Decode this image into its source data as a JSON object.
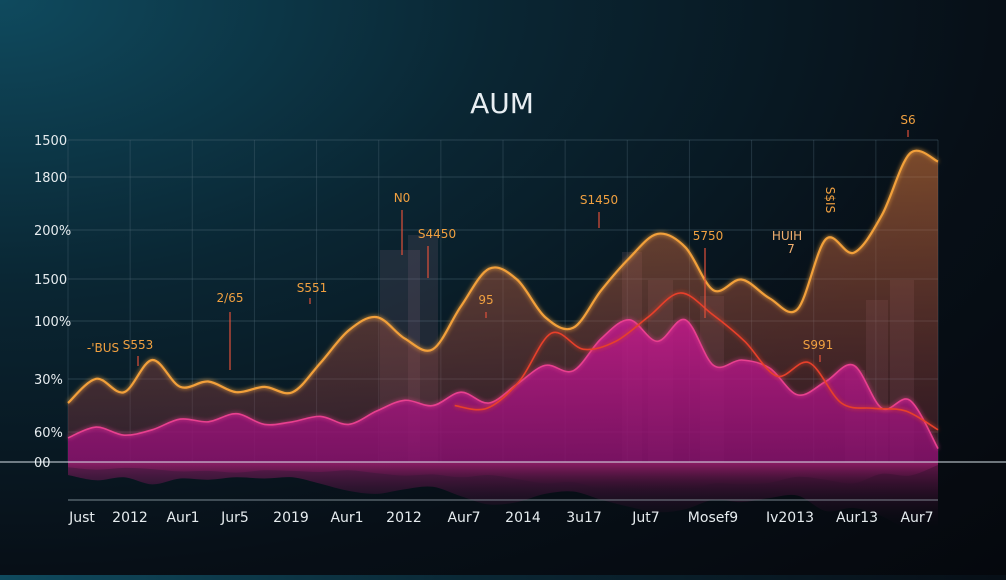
{
  "chart_data": {
    "type": "area",
    "title": "AUM",
    "y_tick_labels": [
      "1500",
      "1800",
      "200%",
      "1500",
      "100%",
      "30%",
      "60%",
      "00"
    ],
    "x_tick_labels": [
      "Just",
      "2012",
      "Aur1",
      "Jur5",
      "2019",
      "Aur1",
      "2012",
      "Aur7",
      "2014",
      "3u17",
      "Jut7",
      "Mosef9",
      "Iv2013",
      "Aur13",
      "Aur7"
    ],
    "grid": true,
    "series": [
      {
        "color": "#f2a03a",
        "values": [
          2.2,
          3.1,
          2.6,
          3.8,
          2.8,
          3.0,
          2.6,
          2.8,
          2.6,
          3.7,
          4.9,
          5.4,
          4.6,
          4.2,
          5.8,
          7.2,
          6.8,
          5.4,
          5.0,
          6.4,
          7.6,
          8.5,
          8.0,
          6.4,
          6.8,
          6.1,
          5.7,
          8.3,
          7.8,
          9.2,
          11.5,
          11.2
        ]
      },
      {
        "color": "#e8408f",
        "values": [
          0.9,
          1.3,
          1.0,
          1.2,
          1.6,
          1.5,
          1.8,
          1.4,
          1.5,
          1.7,
          1.4,
          1.9,
          2.3,
          2.1,
          2.6,
          2.2,
          2.9,
          3.6,
          3.4,
          4.6,
          5.3,
          4.5,
          5.3,
          3.6,
          3.8,
          3.5,
          2.5,
          3.0,
          3.6,
          2.0,
          2.3,
          0.5
        ]
      },
      {
        "color": "#e8402a",
        "values": [
          null,
          null,
          null,
          null,
          null,
          null,
          null,
          null,
          null,
          null,
          null,
          null,
          2.1,
          2.0,
          3.0,
          4.8,
          4.2,
          4.5,
          5.4,
          6.3,
          5.5,
          4.5,
          3.2,
          3.7,
          2.2,
          2.0,
          1.9,
          1.2
        ]
      }
    ],
    "annotations": [
      "-'BUS",
      "S553",
      "2/65",
      "S551",
      "N0",
      "S4450",
      "95",
      "S1450",
      "5750",
      "HUIH",
      "7",
      "S991",
      "S6",
      "S$IS"
    ]
  }
}
